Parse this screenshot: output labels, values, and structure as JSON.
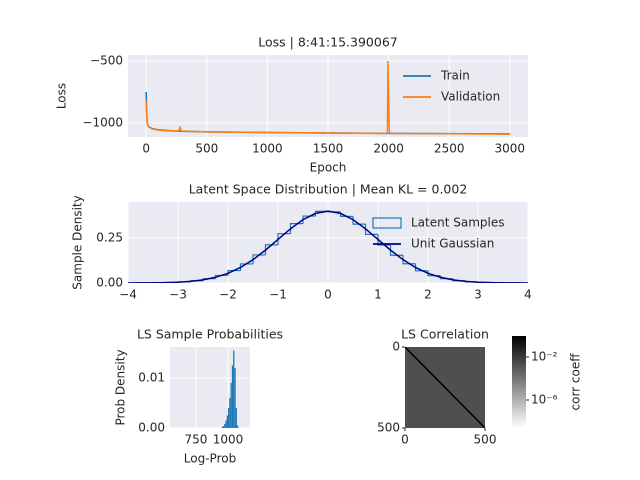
{
  "chart_data": [
    {
      "type": "line",
      "title": "Loss | 8:41:15.390067",
      "x_label": "Epoch",
      "y_label": "Loss",
      "x": [
        0,
        5,
        10,
        20,
        50,
        100,
        200,
        270,
        280,
        290,
        500,
        1000,
        1500,
        1990,
        1995,
        2005,
        2010,
        2500,
        3000
      ],
      "series": [
        {
          "name": "Train",
          "color": "#1f77b4",
          "values": [
            -750,
            -950,
            -1010,
            -1030,
            -1045,
            -1055,
            -1063,
            -1066,
            -1066,
            -1067,
            -1072,
            -1077,
            -1081,
            -1084,
            -1084,
            -1084,
            -1084,
            -1086,
            -1088
          ]
        },
        {
          "name": "Validation",
          "color": "#ff7f0e",
          "values": [
            -820,
            -960,
            -1010,
            -1030,
            -1048,
            -1058,
            -1065,
            -1062,
            -1035,
            -1065,
            -1072,
            -1077,
            -1081,
            -1084,
            -500,
            -1060,
            -1085,
            -1087,
            -1090
          ]
        }
      ],
      "xlim": [
        -150,
        3150
      ],
      "xticks": [
        0,
        500,
        1000,
        1500,
        2000,
        2500,
        3000
      ],
      "ylim": [
        -1113,
        -452
      ],
      "yticks": [
        {
          "value": -1000,
          "label": "−1000"
        },
        {
          "value": -500,
          "label": "−500"
        }
      ],
      "grid": true,
      "legend": "upper right"
    },
    {
      "type": "histogram",
      "title": "Latent Space Distribution | Mean KL = 0.002",
      "y_label": "Sample Density",
      "histtype": "step",
      "bins": [
        -4,
        -3.75,
        -3.5,
        -3.25,
        -3,
        -2.75,
        -2.5,
        -2.25,
        -2,
        -1.75,
        -1.5,
        -1.25,
        -1,
        -0.75,
        -0.5,
        -0.25,
        0,
        0.25,
        0.5,
        0.75,
        1,
        1.25,
        1.5,
        1.75,
        2,
        2.25,
        2.5,
        2.75,
        3,
        3.25,
        3.5,
        3.75,
        4
      ],
      "series": [
        {
          "name": "Latent Samples",
          "color": "#1f77b4",
          "values": [
            0.0003,
            0.0006,
            0.0013,
            0.003,
            0.0064,
            0.0127,
            0.024,
            0.042,
            0.069,
            0.106,
            0.156,
            0.212,
            0.274,
            0.33,
            0.372,
            0.398,
            0.395,
            0.37,
            0.327,
            0.27,
            0.211,
            0.154,
            0.107,
            0.068,
            0.041,
            0.024,
            0.0125,
            0.0064,
            0.003,
            0.0013,
            0.0006,
            0.0003
          ]
        },
        {
          "name": "Unit Gaussian",
          "color": "#000080",
          "x": [
            -4,
            -3.75,
            -3.5,
            -3.25,
            -3,
            -2.75,
            -2.5,
            -2.25,
            -2,
            -1.75,
            -1.5,
            -1.25,
            -1,
            -0.75,
            -0.5,
            -0.25,
            0,
            0.25,
            0.5,
            0.75,
            1,
            1.25,
            1.5,
            1.75,
            2,
            2.25,
            2.5,
            2.75,
            3,
            3.25,
            3.5,
            3.75,
            4
          ],
          "values": [
            0.0001,
            0.0004,
            0.0009,
            0.002,
            0.0044,
            0.0091,
            0.0175,
            0.0317,
            0.054,
            0.0863,
            0.1295,
            0.1826,
            0.242,
            0.3011,
            0.3521,
            0.3867,
            0.3989,
            0.3867,
            0.3521,
            0.3011,
            0.242,
            0.1826,
            0.1295,
            0.0863,
            0.054,
            0.0317,
            0.0175,
            0.0091,
            0.0044,
            0.002,
            0.0009,
            0.0004,
            0.0001
          ]
        }
      ],
      "xlim": [
        -4,
        4
      ],
      "xticks": [
        {
          "value": -4,
          "label": "−4"
        },
        {
          "value": -3,
          "label": "−3"
        },
        {
          "value": -2,
          "label": "−2"
        },
        {
          "value": -1,
          "label": "−1"
        },
        0,
        1,
        2,
        3,
        4
      ],
      "ylim": [
        0,
        0.45
      ],
      "yticks": [
        {
          "value": 0,
          "label": "0.00"
        },
        {
          "value": 0.25,
          "label": "0.25"
        }
      ],
      "grid": true,
      "legend": "upper right"
    },
    {
      "type": "histogram",
      "title": "LS Sample Probabilities",
      "x_label": "Log-Prob",
      "y_label": "Prob Density",
      "histtype": "bar",
      "bins": [
        950,
        960,
        970,
        980,
        990,
        1000,
        1010,
        1020,
        1030,
        1040,
        1050,
        1060,
        1070,
        1080
      ],
      "series": [
        {
          "color": "#1f77b4",
          "values": [
            0.0002,
            0.0004,
            0.0008,
            0.0015,
            0.0025,
            0.004,
            0.006,
            0.009,
            0.0125,
            0.0155,
            0.012,
            0.004,
            0.0005
          ]
        }
      ],
      "xlim": [
        547,
        1172
      ],
      "xticks": [
        750,
        1000
      ],
      "ylim": [
        0,
        0.0162
      ],
      "yticks": [
        {
          "value": 0,
          "label": "0.00"
        },
        0.01
      ],
      "grid": true
    },
    {
      "type": "heatmap",
      "title": "LS Correlation",
      "diagonal_value": 1,
      "off_diagonal_value": 0.002,
      "xlim": [
        0,
        500
      ],
      "xticks": [
        0,
        500
      ],
      "ylim": [
        500,
        0
      ],
      "yticks": [
        0,
        500
      ],
      "colorbar": {
        "label": "corr coeff",
        "log": true,
        "lim": [
          2.5e-09,
          0.89
        ],
        "ticks": [
          {
            "value": 0.01,
            "label": "10⁻²"
          },
          {
            "value": 1e-06,
            "label": "10⁻⁶"
          }
        ]
      }
    }
  ]
}
